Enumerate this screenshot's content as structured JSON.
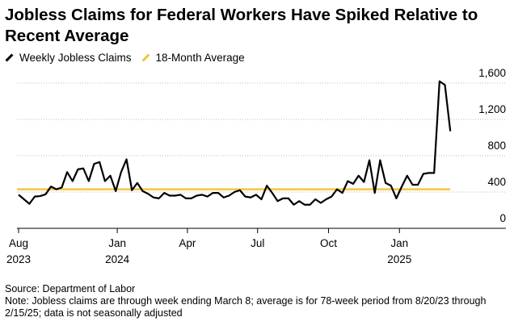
{
  "chart_data": {
    "type": "line",
    "title": "Jobless Claims for Federal Workers Have Spiked Relative to Recent Average",
    "source": "Source: Department of Labor",
    "note": "Note: Jobless claims are through week ending March 8; average is for 78-week period from 8/20/23 through 2/15/25; data is not seasonally adjusted",
    "x": [
      "2023-08-26",
      "2023-09-02",
      "2023-09-09",
      "2023-09-16",
      "2023-09-23",
      "2023-09-30",
      "2023-10-07",
      "2023-10-14",
      "2023-10-21",
      "2023-10-28",
      "2023-11-04",
      "2023-11-11",
      "2023-11-18",
      "2023-11-25",
      "2023-12-02",
      "2023-12-09",
      "2023-12-16",
      "2023-12-23",
      "2023-12-30",
      "2024-01-06",
      "2024-01-13",
      "2024-01-20",
      "2024-01-27",
      "2024-02-03",
      "2024-02-10",
      "2024-02-17",
      "2024-02-24",
      "2024-03-02",
      "2024-03-09",
      "2024-03-16",
      "2024-03-23",
      "2024-03-30",
      "2024-04-06",
      "2024-04-13",
      "2024-04-20",
      "2024-04-27",
      "2024-05-04",
      "2024-05-11",
      "2024-05-18",
      "2024-05-25",
      "2024-06-01",
      "2024-06-08",
      "2024-06-15",
      "2024-06-22",
      "2024-06-29",
      "2024-07-06",
      "2024-07-13",
      "2024-07-20",
      "2024-07-27",
      "2024-08-03",
      "2024-08-10",
      "2024-08-17",
      "2024-08-24",
      "2024-08-31",
      "2024-09-07",
      "2024-09-14",
      "2024-09-21",
      "2024-09-28",
      "2024-10-05",
      "2024-10-12",
      "2024-10-19",
      "2024-10-26",
      "2024-11-02",
      "2024-11-09",
      "2024-11-16",
      "2024-11-23",
      "2024-11-30",
      "2024-12-07",
      "2024-12-14",
      "2024-12-21",
      "2024-12-28",
      "2025-01-04",
      "2025-01-11",
      "2025-01-18",
      "2025-01-25",
      "2025-02-01",
      "2025-02-08",
      "2025-02-15",
      "2025-02-22",
      "2025-03-01",
      "2025-03-08"
    ],
    "series": [
      {
        "name": "Weekly Jobless Claims",
        "color": "#000000",
        "values": [
          370,
          320,
          270,
          350,
          355,
          375,
          460,
          430,
          450,
          620,
          520,
          650,
          660,
          520,
          710,
          730,
          520,
          580,
          410,
          620,
          760,
          420,
          500,
          410,
          380,
          340,
          330,
          390,
          360,
          360,
          370,
          330,
          330,
          360,
          370,
          350,
          390,
          390,
          340,
          360,
          400,
          420,
          350,
          340,
          370,
          320,
          470,
          390,
          300,
          330,
          330,
          260,
          300,
          260,
          260,
          320,
          280,
          320,
          350,
          430,
          390,
          520,
          490,
          580,
          510,
          750,
          390,
          750,
          500,
          470,
          330,
          460,
          580,
          480,
          480,
          600,
          610,
          610,
          1620,
          1580,
          1070
        ]
      },
      {
        "name": "18-Month Average",
        "color": "#f2c73c",
        "value": 430
      }
    ],
    "xlim": [
      "2023-08-26",
      "2025-04-03"
    ],
    "xticks": [
      {
        "value": "2023-08-26",
        "label": "Aug",
        "year": "2023"
      },
      {
        "value": "2024-01-01",
        "label": "Jan",
        "year": "2024"
      },
      {
        "value": "2024-04-01",
        "label": "Apr"
      },
      {
        "value": "2024-07-01",
        "label": "Jul"
      },
      {
        "value": "2024-10-01",
        "label": "Oct"
      },
      {
        "value": "2025-01-01",
        "label": "Jan",
        "year": "2025"
      }
    ],
    "ylim": [
      0,
      1600
    ],
    "yticks": [
      0,
      400,
      800,
      {
        "value": 1200,
        "label": "1,200"
      },
      {
        "value": 1600,
        "label": "1,600"
      }
    ],
    "grid": true
  }
}
